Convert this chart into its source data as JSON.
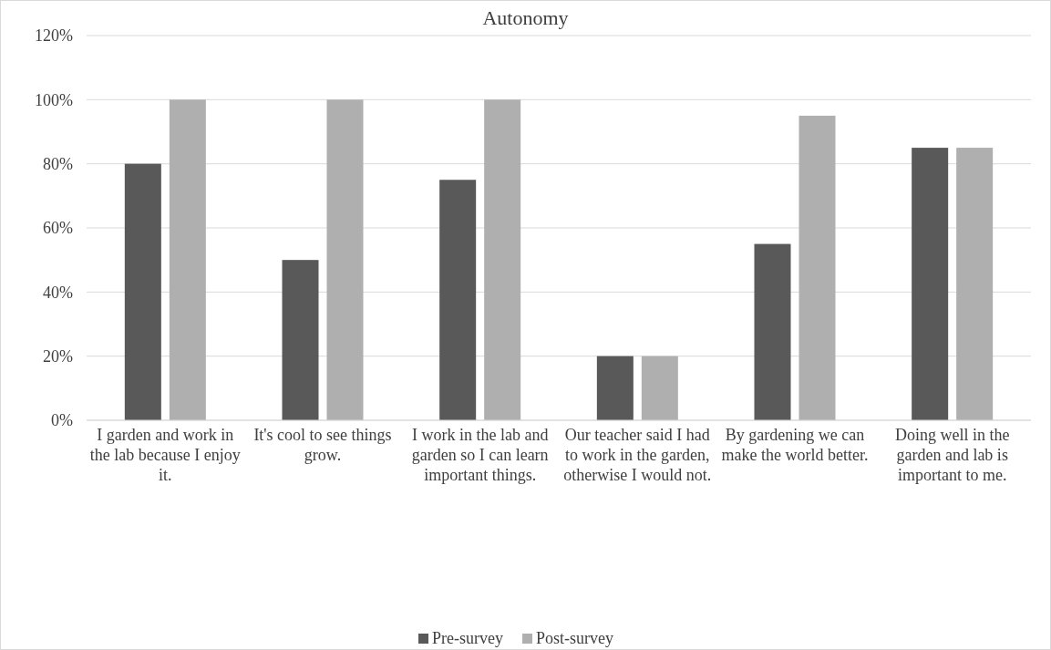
{
  "chart_data": {
    "type": "bar",
    "title": "Autonomy",
    "categories": [
      "I garden and work in the lab because I enjoy it.",
      "It's cool to see things grow.",
      "I work in the lab and garden so I can learn important things.",
      "Our teacher said I had to work in the garden, otherwise I would not.",
      "By gardening we can make the world better.",
      "Doing well in the garden and lab is important to me."
    ],
    "series": [
      {
        "name": "Pre-survey",
        "color": "#595959",
        "values": [
          0.8,
          0.5,
          0.75,
          0.2,
          0.55,
          0.85
        ]
      },
      {
        "name": "Post-survey",
        "color": "#afafaf",
        "values": [
          1.0,
          1.0,
          1.0,
          0.2,
          0.95,
          0.85
        ]
      }
    ],
    "ylim": [
      0,
      1.2
    ],
    "yticks": [
      {
        "value": 0,
        "label": "0%"
      },
      {
        "value": 0.2,
        "label": "20%"
      },
      {
        "value": 0.4,
        "label": "40%"
      },
      {
        "value": 0.6,
        "label": "60%"
      },
      {
        "value": 0.8,
        "label": "80%"
      },
      {
        "value": 1.0,
        "label": "100%"
      },
      {
        "value": 1.2,
        "label": "120%"
      }
    ],
    "grid": "y",
    "legend": "bottom"
  }
}
